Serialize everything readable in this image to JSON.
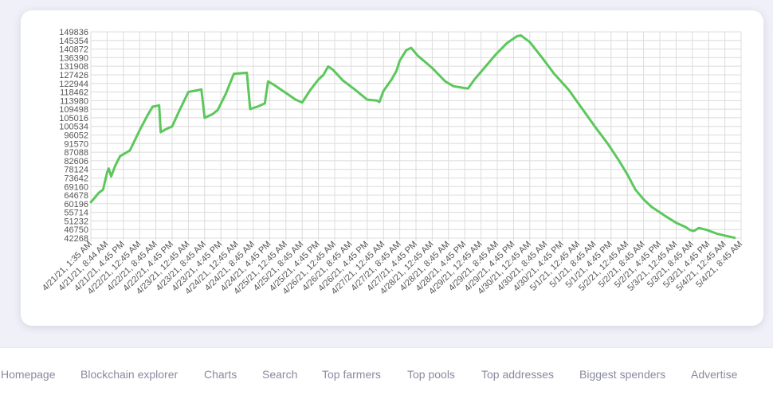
{
  "chart_data": {
    "type": "line",
    "title": "",
    "xlabel": "",
    "ylabel": "",
    "line_color": "#5cc85c",
    "grid": true,
    "yticks": [
      149836,
      145354,
      140872,
      136390,
      131908,
      127426,
      122944,
      118462,
      113980,
      109498,
      105016,
      100534,
      96052,
      91570,
      87088,
      82606,
      78124,
      73642,
      69160,
      64678,
      60196,
      55714,
      51232,
      46750,
      42268
    ],
    "ylim": [
      42268,
      149836
    ],
    "xticks": [
      "4/21/21, 1:35 AM",
      "4/21/21, 8:44 AM",
      "4/21/21, 4:45 PM",
      "4/22/21, 12:45 AM",
      "4/22/21, 8:45 AM",
      "4/22/21, 4:45 PM",
      "4/23/21, 12:45 AM",
      "4/23/21, 8:45 AM",
      "4/23/21, 4:45 PM",
      "4/24/21, 12:45 AM",
      "4/24/21, 8:45 AM",
      "4/24/21, 4:45 PM",
      "4/25/21, 12:45 AM",
      "4/25/21, 8:45 AM",
      "4/25/21, 4:45 PM",
      "4/26/21, 12:45 AM",
      "4/26/21, 8:45 AM",
      "4/26/21, 4:45 PM",
      "4/27/21, 12:45 AM",
      "4/27/21, 8:45 AM",
      "4/27/21, 4:45 PM",
      "4/28/21, 12:45 AM",
      "4/28/21, 8:45 AM",
      "4/28/21, 4:45 PM",
      "4/29/21, 12:45 AM",
      "4/29/21, 8:45 AM",
      "4/29/21, 4:45 PM",
      "4/30/21, 12:45 AM",
      "4/30/21, 8:45 AM",
      "4/30/21, 4:45 PM",
      "5/1/21, 12:45 AM",
      "5/1/21, 8:45 AM",
      "5/1/21, 4:45 PM",
      "5/2/21, 12:45 AM",
      "5/2/21, 8:45 AM",
      "5/2/21, 4:45 PM",
      "5/3/21, 12:45 AM",
      "5/3/21, 8:45 AM",
      "5/3/21, 4:45 PM",
      "5/4/21, 12:45 AM",
      "5/4/21, 8:45 AM"
    ],
    "series": [
      {
        "name": "",
        "points": [
          [
            0,
            61000
          ],
          [
            0.2,
            63000
          ],
          [
            0.5,
            66000
          ],
          [
            0.75,
            67500
          ],
          [
            1.0,
            76500
          ],
          [
            1.1,
            78600
          ],
          [
            1.25,
            74500
          ],
          [
            1.5,
            80000
          ],
          [
            1.8,
            85000
          ],
          [
            2.2,
            87000
          ],
          [
            2.4,
            88000
          ],
          [
            3.0,
            98500
          ],
          [
            3.5,
            106500
          ],
          [
            3.8,
            110800
          ],
          [
            4.2,
            111500
          ],
          [
            4.3,
            97500
          ],
          [
            4.6,
            99000
          ],
          [
            5.0,
            100500
          ],
          [
            5.4,
            108000
          ],
          [
            6.0,
            118500
          ],
          [
            6.8,
            119800
          ],
          [
            7.0,
            105000
          ],
          [
            7.5,
            107000
          ],
          [
            7.8,
            109000
          ],
          [
            8.3,
            117500
          ],
          [
            8.8,
            128000
          ],
          [
            9.6,
            128500
          ],
          [
            9.8,
            109600
          ],
          [
            10.3,
            111000
          ],
          [
            10.7,
            112500
          ],
          [
            10.9,
            124000
          ],
          [
            11.3,
            122000
          ],
          [
            12.0,
            118000
          ],
          [
            12.6,
            114500
          ],
          [
            13.0,
            113000
          ],
          [
            13.5,
            119500
          ],
          [
            14.0,
            125000
          ],
          [
            14.3,
            127300
          ],
          [
            14.6,
            131800
          ],
          [
            14.9,
            130000
          ],
          [
            15.5,
            124500
          ],
          [
            16.2,
            120000
          ],
          [
            17.0,
            114500
          ],
          [
            17.6,
            114000
          ],
          [
            17.75,
            113300
          ],
          [
            18.0,
            119000
          ],
          [
            18.5,
            125000
          ],
          [
            18.8,
            129500
          ],
          [
            19.0,
            134800
          ],
          [
            19.4,
            140300
          ],
          [
            19.7,
            141500
          ],
          [
            20.1,
            137500
          ],
          [
            21.0,
            131000
          ],
          [
            21.8,
            124000
          ],
          [
            22.3,
            121500
          ],
          [
            23.0,
            120500
          ],
          [
            23.2,
            120300
          ],
          [
            23.6,
            125000
          ],
          [
            24.2,
            131000
          ],
          [
            24.9,
            138000
          ],
          [
            25.6,
            144000
          ],
          [
            26.2,
            147500
          ],
          [
            26.45,
            148000
          ],
          [
            27.0,
            144500
          ],
          [
            27.7,
            137000
          ],
          [
            28.5,
            128000
          ],
          [
            29.4,
            119500
          ],
          [
            30.2,
            110000
          ],
          [
            31.0,
            100500
          ],
          [
            31.8,
            91500
          ],
          [
            32.5,
            82500
          ],
          [
            33.0,
            75500
          ],
          [
            33.5,
            67500
          ],
          [
            34.0,
            62500
          ],
          [
            34.5,
            58500
          ],
          [
            35.3,
            54000
          ],
          [
            36.0,
            50300
          ],
          [
            36.6,
            48000
          ],
          [
            36.85,
            46500
          ],
          [
            37.1,
            46000
          ],
          [
            37.4,
            47600
          ],
          [
            37.9,
            46500
          ],
          [
            38.5,
            44600
          ],
          [
            39.0,
            43600
          ],
          [
            39.3,
            43000
          ],
          [
            39.6,
            42450
          ]
        ]
      }
    ]
  },
  "footer": {
    "links": [
      "Homepage",
      "Blockchain explorer",
      "Charts",
      "Search",
      "Top farmers",
      "Top pools",
      "Top addresses",
      "Biggest spenders",
      "Advertise"
    ]
  }
}
